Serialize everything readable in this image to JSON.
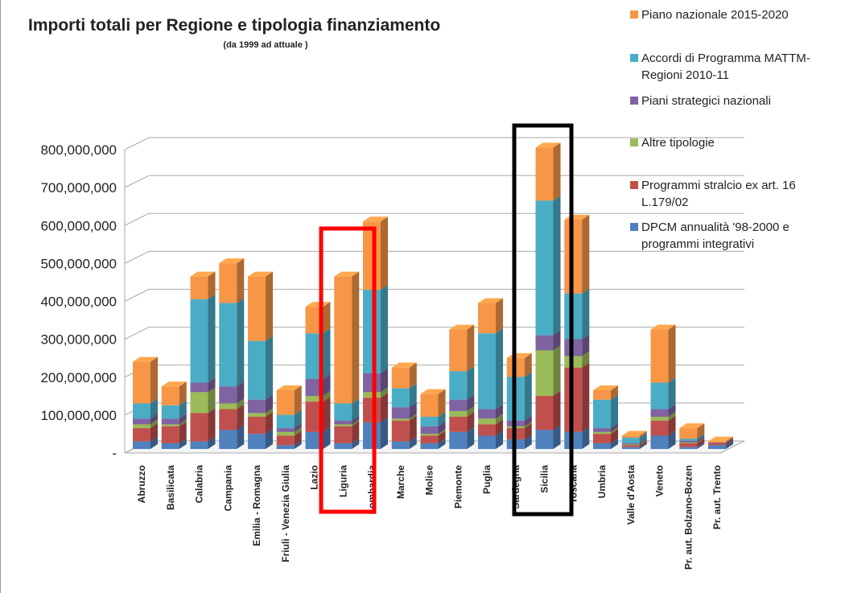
{
  "chart_data": {
    "type": "bar3d_stacked",
    "title": "Importi totali per Regione e  tipologia finanziamento",
    "subtitle": "(da 1999 ad attuale )",
    "categories": [
      "Abruzzo",
      "Basilicata",
      "Calabria",
      "Campania",
      "Emilia - Romagna",
      "Friuli - Venezia Giulia",
      "Lazio",
      "Liguria",
      "Lombardia",
      "Marche",
      "Molise",
      "Piemonte",
      "Puglia",
      "Sardegna",
      "Sicilia",
      "Toscana",
      "Umbria",
      "Valle d'Aosta",
      "Veneto",
      "Pr. aut. Bolzano-Bozen",
      "Pr. aut. Trento"
    ],
    "series": [
      {
        "name": "DPCM annualità '98-2000 e programmi integrativi",
        "color": "#4f81bd",
        "values": [
          20000000,
          15000000,
          20000000,
          50000000,
          40000000,
          10000000,
          45000000,
          15000000,
          70000000,
          20000000,
          15000000,
          45000000,
          35000000,
          25000000,
          50000000,
          45000000,
          15000000,
          5000000,
          35000000,
          5000000,
          10000000
        ]
      },
      {
        "name": "Programmi stralcio ex art. 16 L.179/02",
        "color": "#c0504d",
        "values": [
          35000000,
          45000000,
          75000000,
          55000000,
          45000000,
          25000000,
          80000000,
          45000000,
          65000000,
          55000000,
          20000000,
          40000000,
          30000000,
          30000000,
          90000000,
          170000000,
          25000000,
          5000000,
          40000000,
          10000000,
          5000000
        ]
      },
      {
        "name": "Altre tipologie",
        "color": "#9bbb59",
        "values": [
          10000000,
          5000000,
          55000000,
          15000000,
          10000000,
          10000000,
          15000000,
          5000000,
          15000000,
          5000000,
          5000000,
          15000000,
          15000000,
          5000000,
          120000000,
          30000000,
          5000000,
          2000000,
          10000000,
          2000000,
          0
        ]
      },
      {
        "name": "Piani strategici nazionali",
        "color": "#8064a2",
        "values": [
          15000000,
          15000000,
          25000000,
          45000000,
          35000000,
          10000000,
          45000000,
          10000000,
          50000000,
          30000000,
          20000000,
          30000000,
          25000000,
          15000000,
          40000000,
          45000000,
          10000000,
          3000000,
          20000000,
          5000000,
          2000000
        ]
      },
      {
        "name": "Accordi di Programma MATTM-Regioni 2010-11",
        "color": "#4bacc6",
        "values": [
          40000000,
          35000000,
          220000000,
          220000000,
          155000000,
          35000000,
          120000000,
          45000000,
          220000000,
          50000000,
          25000000,
          75000000,
          200000000,
          115000000,
          355000000,
          120000000,
          75000000,
          15000000,
          70000000,
          5000000,
          0
        ]
      },
      {
        "name": "Piano nazionale 2015-2020",
        "color": "#f79646",
        "values": [
          110000000,
          50000000,
          60000000,
          105000000,
          170000000,
          65000000,
          70000000,
          335000000,
          180000000,
          55000000,
          60000000,
          110000000,
          80000000,
          50000000,
          140000000,
          195000000,
          25000000,
          5000000,
          140000000,
          28000000,
          3000000
        ]
      }
    ],
    "ylim": [
      0,
      800000000
    ],
    "yticks": [
      {
        "value": 0,
        "label": "-"
      },
      {
        "value": 100000000,
        "label": "100,000,000"
      },
      {
        "value": 200000000,
        "label": "200,000,000"
      },
      {
        "value": 300000000,
        "label": "300,000,000"
      },
      {
        "value": 400000000,
        "label": "400,000,000"
      },
      {
        "value": 500000000,
        "label": "500,000,000"
      },
      {
        "value": 600000000,
        "label": "600,000,000"
      },
      {
        "value": 700000000,
        "label": "700,000,000"
      },
      {
        "value": 800000000,
        "label": "800,000,000"
      }
    ],
    "grid": true
  }
}
